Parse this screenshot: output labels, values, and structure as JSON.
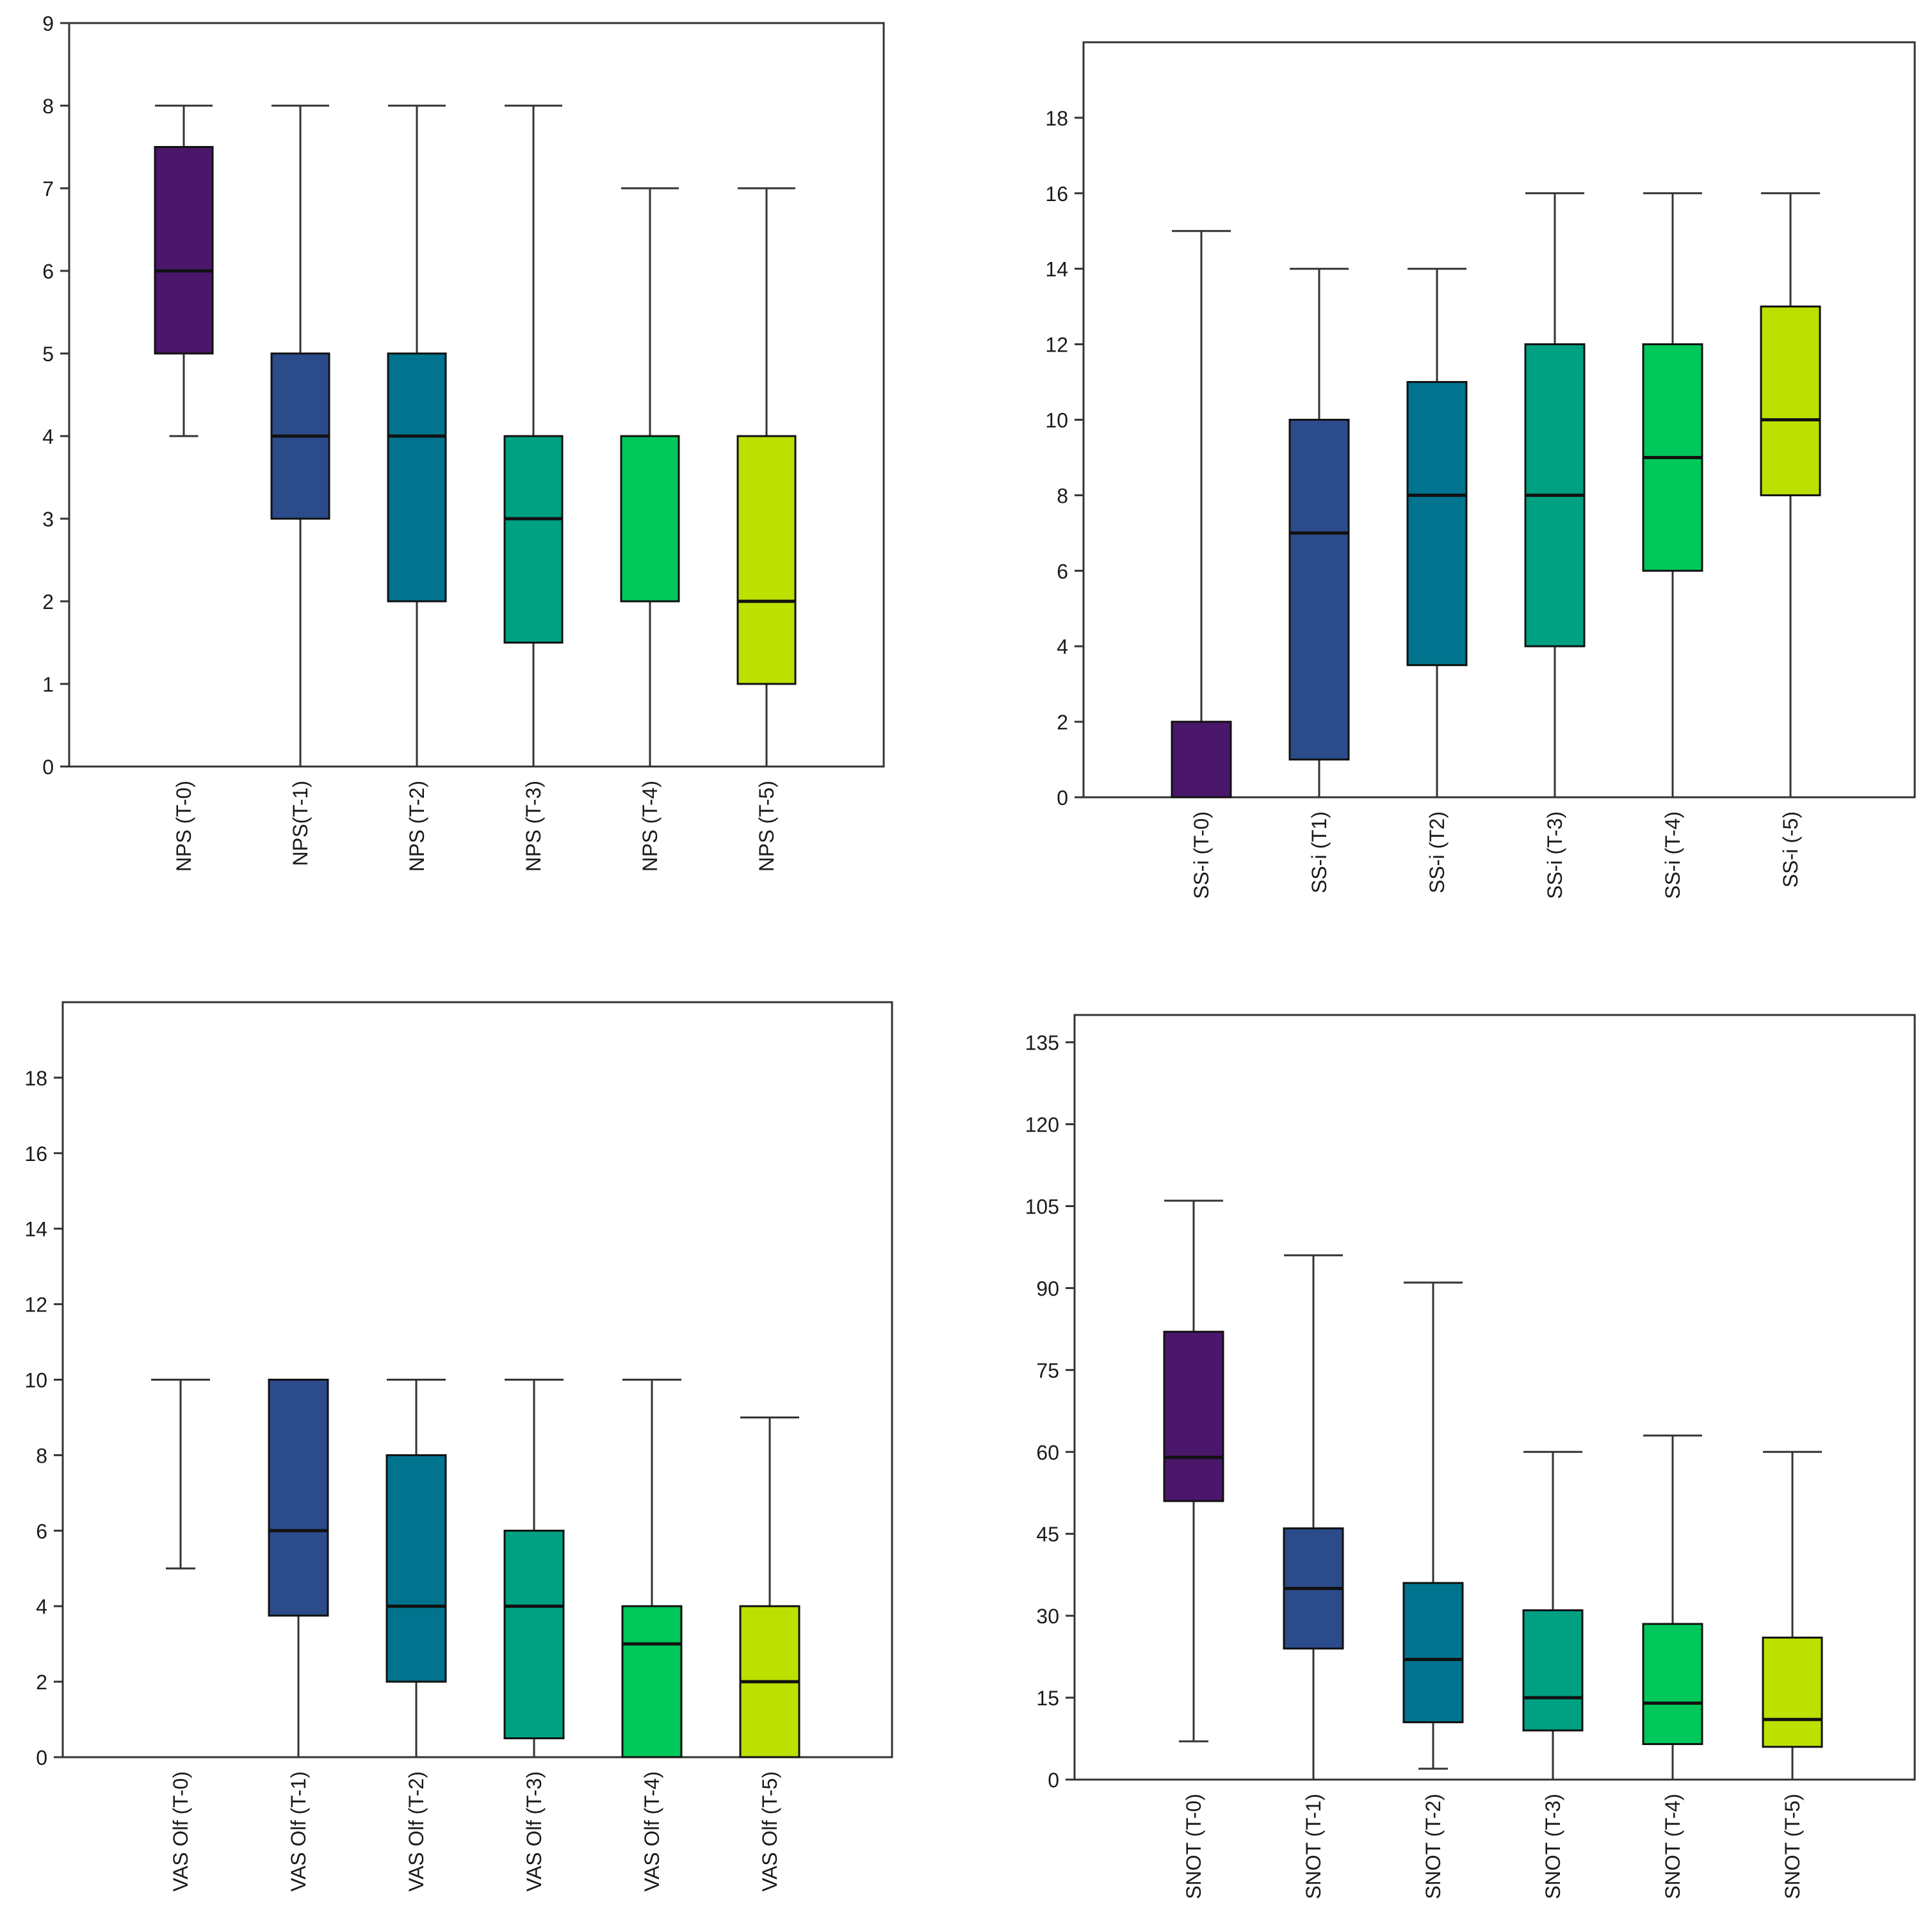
{
  "chart_data": [
    {
      "type": "boxplot",
      "ylim": [
        0,
        9
      ],
      "yticks": [
        0,
        1,
        2,
        3,
        4,
        5,
        6,
        7,
        8,
        9
      ],
      "categories": [
        "NPS (T-0)",
        "NPS(T-1)",
        "NPS (T-2)",
        "NPS (T-3)",
        "NPS (T-4)",
        "NPS (T-5)"
      ],
      "colors": [
        "#4a176b",
        "#2b4b8a",
        "#00748e",
        "#00a083",
        "#00c85a",
        "#bce000"
      ],
      "boxes": [
        {
          "min": 4,
          "q1": 5,
          "median": 6,
          "q3": 7.5,
          "max": 8
        },
        {
          "min": 0,
          "q1": 3,
          "median": 4,
          "q3": 5,
          "max": 8
        },
        {
          "min": 0,
          "q1": 2,
          "median": 4,
          "q3": 5,
          "max": 8
        },
        {
          "min": 0,
          "q1": 1.5,
          "median": 3,
          "q3": 4,
          "max": 8
        },
        {
          "min": 0,
          "q1": 2,
          "median": 4,
          "q3": 4,
          "max": 7
        },
        {
          "min": 0,
          "q1": 1,
          "median": 2,
          "q3": 4,
          "max": 7
        }
      ]
    },
    {
      "type": "boxplot",
      "ylim": [
        0,
        20
      ],
      "yticks": [
        0,
        2,
        4,
        6,
        8,
        10,
        12,
        14,
        16,
        18
      ],
      "categories": [
        "SS-i (T-0)",
        "SS-i (T1)",
        "SS-i (T2)",
        "SS-i (T-3)",
        "SS-i (T-4)",
        "SS-i (-5)"
      ],
      "colors": [
        "#4a176b",
        "#2b4b8a",
        "#00748e",
        "#00a083",
        "#00c85a",
        "#bce000"
      ],
      "boxes": [
        {
          "min": 0,
          "q1": 0,
          "median": 0,
          "q3": 2,
          "max": 15
        },
        {
          "min": 0,
          "q1": 1,
          "median": 7,
          "q3": 10,
          "max": 14
        },
        {
          "min": 0,
          "q1": 3.5,
          "median": 8,
          "q3": 11,
          "max": 14
        },
        {
          "min": 0,
          "q1": 4,
          "median": 8,
          "q3": 12,
          "max": 16
        },
        {
          "min": 0,
          "q1": 6,
          "median": 9,
          "q3": 12,
          "max": 16
        },
        {
          "min": 0,
          "q1": 8,
          "median": 10,
          "q3": 13,
          "max": 16
        }
      ]
    },
    {
      "type": "boxplot",
      "ylim": [
        0,
        20
      ],
      "yticks": [
        0,
        2,
        4,
        6,
        8,
        10,
        12,
        14,
        16,
        18
      ],
      "categories": [
        "VAS Olf (T-0)",
        "VAS Olf (T-1)",
        "VAS Olf (T-2)",
        "VAS Olf (T-3)",
        "VAS Olf (T-4)",
        "VAS Olf (T-5)"
      ],
      "colors": [
        "#4a176b",
        "#2b4b8a",
        "#00748e",
        "#00a083",
        "#00c85a",
        "#bce000"
      ],
      "boxes": [
        {
          "min": 5,
          "q1": 10,
          "median": 10,
          "q3": 10,
          "max": 10
        },
        {
          "min": 0,
          "q1": 3.75,
          "median": 6,
          "q3": 10,
          "max": 10
        },
        {
          "min": 0,
          "q1": 2,
          "median": 4,
          "q3": 8,
          "max": 10
        },
        {
          "min": 0,
          "q1": 0.5,
          "median": 4,
          "q3": 6,
          "max": 10
        },
        {
          "min": 0,
          "q1": 0,
          "median": 3,
          "q3": 4,
          "max": 10
        },
        {
          "min": 0,
          "q1": 0,
          "median": 2,
          "q3": 4,
          "max": 9
        }
      ]
    },
    {
      "type": "boxplot",
      "ylim": [
        0,
        140
      ],
      "yticks": [
        0,
        15,
        30,
        45,
        60,
        75,
        90,
        105,
        120,
        135
      ],
      "categories": [
        "SNOT (T-0)",
        "SNOT (T-1)",
        "SNOT (T-2)",
        "SNOT (T-3)",
        "SNOT (T-4)",
        "SNOT (T-5)"
      ],
      "colors": [
        "#4a176b",
        "#2b4b8a",
        "#00748e",
        "#00a083",
        "#00c85a",
        "#bce000"
      ],
      "boxes": [
        {
          "min": 7,
          "q1": 51,
          "median": 59,
          "q3": 82,
          "max": 106
        },
        {
          "min": 0,
          "q1": 24,
          "median": 35,
          "q3": 46,
          "max": 96
        },
        {
          "min": 2,
          "q1": 10.5,
          "median": 22,
          "q3": 36,
          "max": 91
        },
        {
          "min": 0,
          "q1": 9,
          "median": 15,
          "q3": 31,
          "max": 60
        },
        {
          "min": 0,
          "q1": 6.5,
          "median": 14,
          "q3": 28.5,
          "max": 63
        },
        {
          "min": 0,
          "q1": 6,
          "median": 11,
          "q3": 26,
          "max": 60
        }
      ]
    }
  ]
}
